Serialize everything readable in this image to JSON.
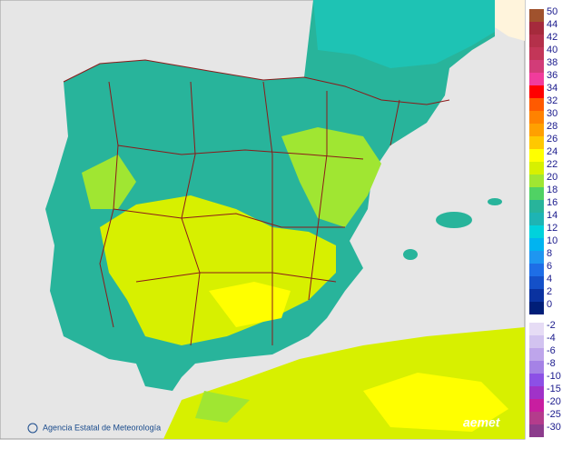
{
  "credit": "Agencia Estatal de Meteorología",
  "logo": "aemet",
  "legend": {
    "upper": [
      {
        "value": 50,
        "color": "#a0522d"
      },
      {
        "value": 44,
        "color": "#a52a3c"
      },
      {
        "value": 42,
        "color": "#b4304a"
      },
      {
        "value": 40,
        "color": "#c33658"
      },
      {
        "value": 38,
        "color": "#d23c78"
      },
      {
        "value": 36,
        "color": "#f03c9c"
      },
      {
        "value": 34,
        "color": "#ff0000"
      },
      {
        "value": 32,
        "color": "#ff5a00"
      },
      {
        "value": 30,
        "color": "#ff8200"
      },
      {
        "value": 28,
        "color": "#ffa000"
      },
      {
        "value": 26,
        "color": "#ffc800"
      },
      {
        "value": 24,
        "color": "#ffff00"
      },
      {
        "value": 22,
        "color": "#d7f000"
      },
      {
        "value": 20,
        "color": "#a0e632"
      },
      {
        "value": 18,
        "color": "#50d264"
      },
      {
        "value": 16,
        "color": "#28b49b"
      },
      {
        "value": 14,
        "color": "#1eb4b4"
      },
      {
        "value": 12,
        "color": "#00d2dc"
      },
      {
        "value": 10,
        "color": "#00b4f0"
      },
      {
        "value": 8,
        "color": "#1e96f0"
      },
      {
        "value": 6,
        "color": "#1e6ee6"
      },
      {
        "value": 4,
        "color": "#1450c8"
      },
      {
        "value": 2,
        "color": "#0a32a0"
      },
      {
        "value": 0,
        "color": "#001e78"
      }
    ],
    "lower": [
      {
        "value": -2,
        "color": "#e6dcf5"
      },
      {
        "value": -4,
        "color": "#d2c3f0"
      },
      {
        "value": -6,
        "color": "#bea5eb"
      },
      {
        "value": -8,
        "color": "#a582e6"
      },
      {
        "value": -10,
        "color": "#8c50e6"
      },
      {
        "value": -15,
        "color": "#a032c8"
      },
      {
        "value": -20,
        "color": "#c81ea0"
      },
      {
        "value": -25,
        "color": "#b43c8c"
      },
      {
        "value": -30,
        "color": "#8c3c8c"
      }
    ]
  }
}
